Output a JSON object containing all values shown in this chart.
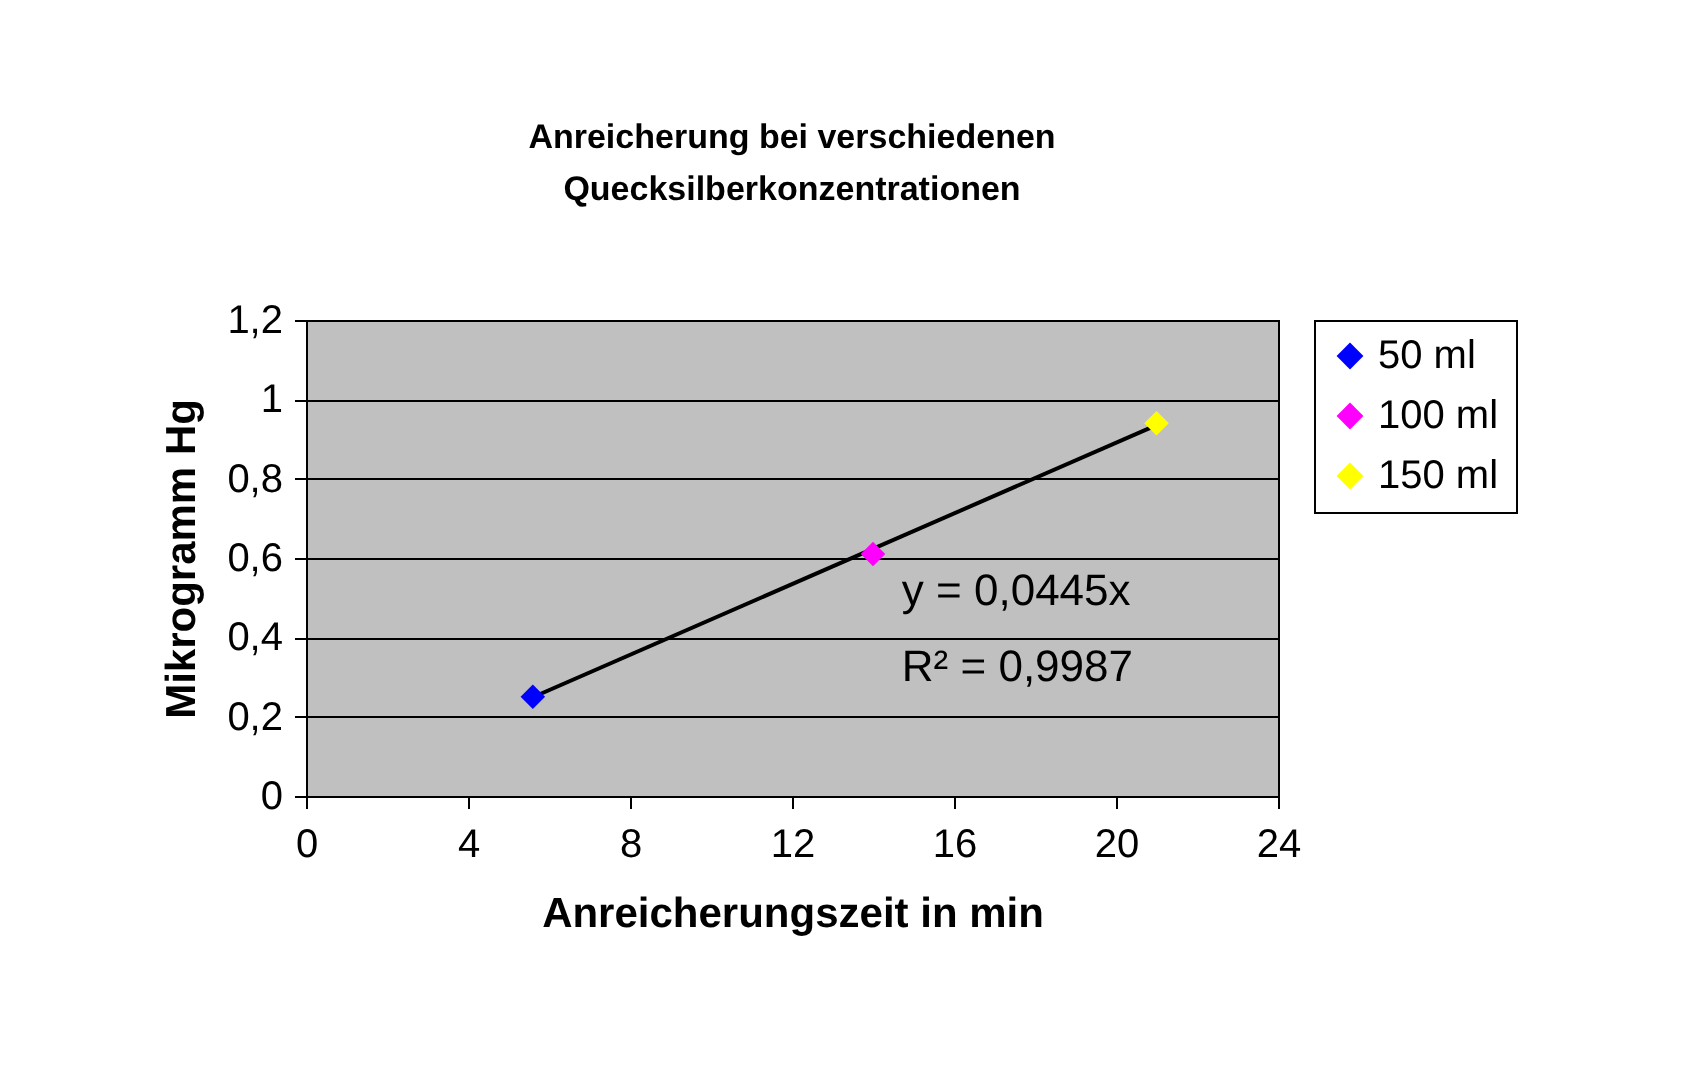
{
  "chart_data": {
    "type": "scatter",
    "title": "Anreicherung bei verschiedenen Quecksilberkonzentrationen",
    "xlabel": "Anreicherungszeit in min",
    "ylabel": "Mikrogramm Hg",
    "series": [
      {
        "name": "50 ml",
        "color": "#0000ff",
        "x": [
          5.6
        ],
        "values": [
          0.25
        ]
      },
      {
        "name": "100 ml",
        "color": "#ff00ff",
        "x": [
          14.0
        ],
        "values": [
          0.61
        ]
      },
      {
        "name": "150 ml",
        "color": "#ffff00",
        "x": [
          21.0
        ],
        "values": [
          0.94
        ]
      },
      {
        "type": "line",
        "marker": "none",
        "color": "#000000",
        "x": [
          5.6,
          21.0
        ],
        "values": [
          0.249,
          0.935
        ]
      }
    ],
    "annotations": [
      "y = 0,0445x",
      "R² = 0,9987"
    ],
    "xlim": [
      0,
      24
    ],
    "xticks": [
      0,
      4,
      8,
      12,
      16,
      20,
      24
    ],
    "ylim": [
      0,
      1.2
    ],
    "yticks": [
      0,
      {
        "value": 0.2,
        "label": "0,2"
      },
      {
        "value": 0.4,
        "label": "0,4"
      },
      {
        "value": 0.6,
        "label": "0,6"
      },
      {
        "value": 0.8,
        "label": "0,8"
      },
      1,
      {
        "value": 1.2,
        "label": "1,2"
      }
    ],
    "grid": "y",
    "legend": "right",
    "marker": "diamond"
  }
}
